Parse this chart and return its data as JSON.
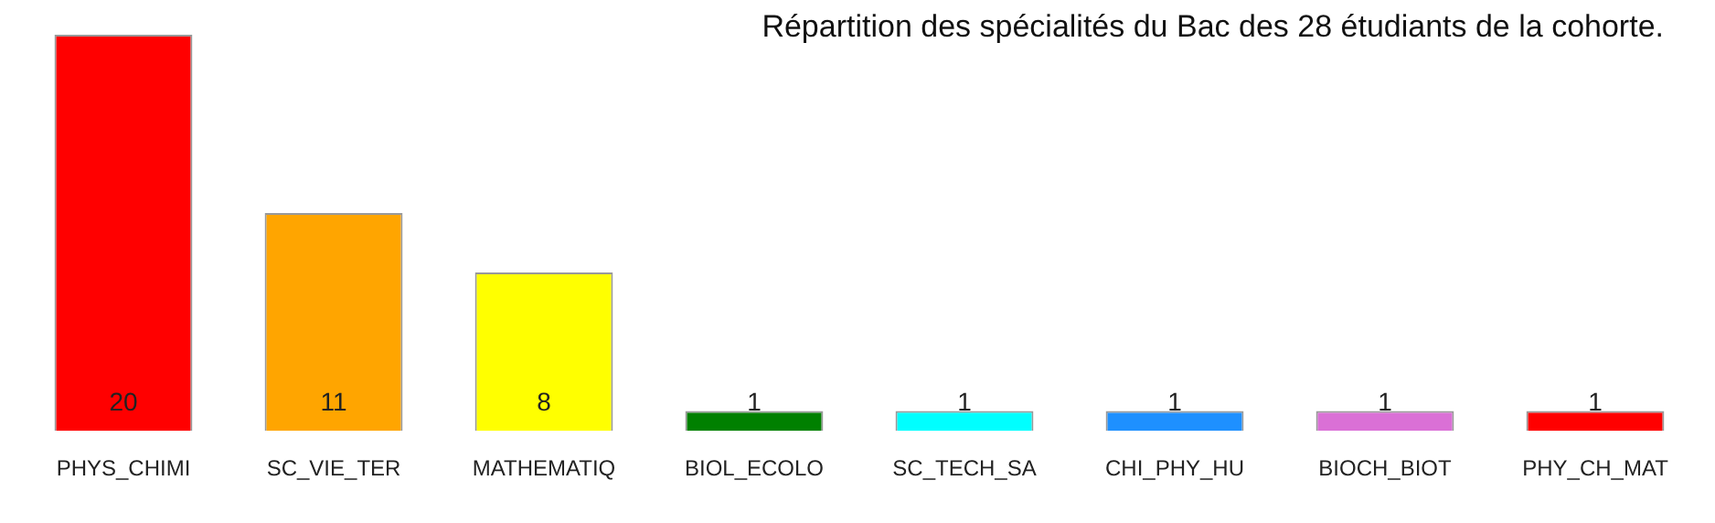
{
  "chart_data": {
    "type": "bar",
    "title": "Répartition des spécialités du Bac des 28 étudiants de la cohorte.",
    "categories": [
      "PHYS_CHIMI",
      "SC_VIE_TER",
      "MATHEMATIQ",
      "BIOL_ECOLO",
      "SC_TECH_SA",
      "CHI_PHY_HU",
      "BIOCH_BIOT",
      "PHY_CH_MAT"
    ],
    "values": [
      20,
      11,
      8,
      1,
      1,
      1,
      1,
      1
    ],
    "colors": [
      "#ff0000",
      "#ffa500",
      "#ffff00",
      "#008000",
      "#00ffff",
      "#1e90ff",
      "#da70d6",
      "#ff0000"
    ],
    "data_labels": true,
    "grid": false,
    "legend": false
  }
}
